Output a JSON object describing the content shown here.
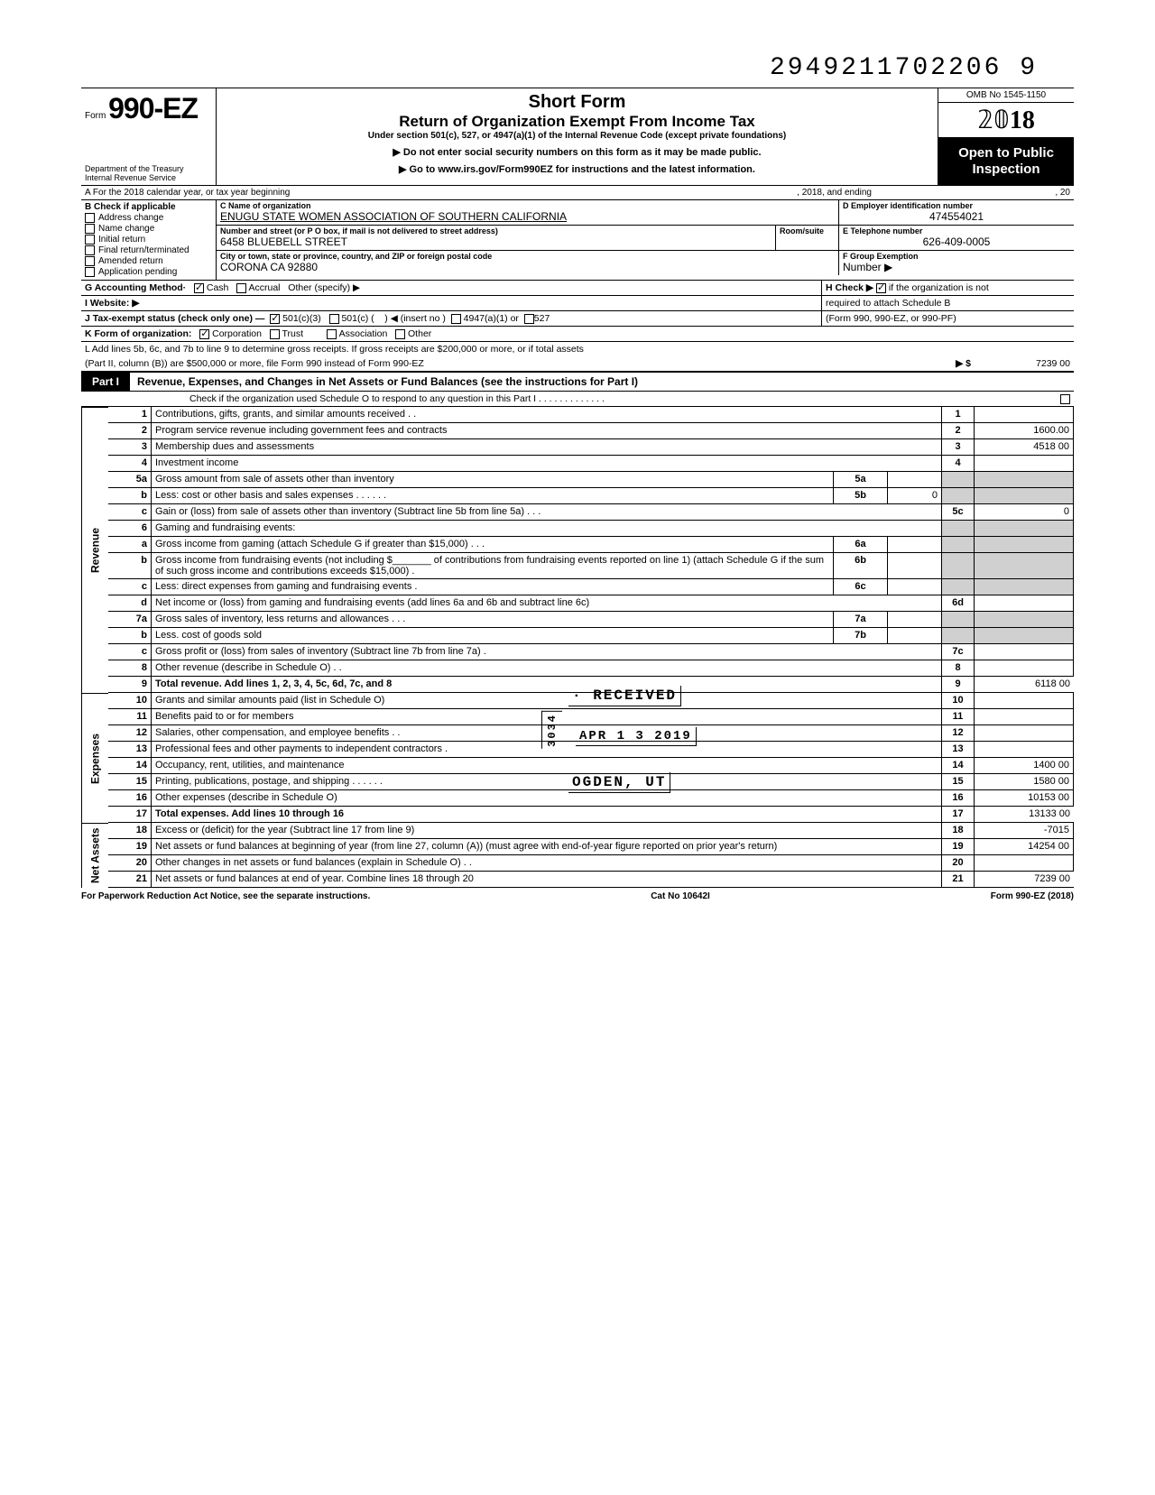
{
  "scan_number": "2949211702206 9",
  "header": {
    "form_prefix": "Form",
    "form_number": "990-EZ",
    "dept1": "Department of the Treasury",
    "dept2": "Internal Revenue Service",
    "title1": "Short Form",
    "title2": "Return of Organization Exempt From Income Tax",
    "subtitle": "Under section 501(c), 527, or 4947(a)(1) of the Internal Revenue Code (except private foundations)",
    "line1": "▶ Do not enter social security numbers on this form as it may be made public.",
    "line2": "▶ Go to www.irs.gov/Form990EZ for instructions and the latest information.",
    "omb": "OMB No 1545-1150",
    "year": "2018",
    "open": "Open to Public Inspection"
  },
  "row_a": {
    "label_a": "A For the 2018 calendar year, or tax year beginning",
    "mid": ", 2018, and ending",
    "end": ", 20"
  },
  "section_b": {
    "header": "B  Check if applicable",
    "items": [
      "Address change",
      "Name change",
      "Initial return",
      "Final return/terminated",
      "Amended return",
      "Application pending"
    ]
  },
  "section_c": {
    "name_label": "C Name of organization",
    "name": "ENUGU STATE WOMEN ASSOCIATION OF SOUTHERN CALIFORNIA",
    "street_label": "Number and street (or P O  box, if mail is not delivered to street address)",
    "room_label": "Room/suite",
    "street": "6458 BLUEBELL STREET",
    "city_label": "City or town, state or province, country, and ZIP or foreign postal code",
    "city": "CORONA   CA 92880"
  },
  "section_d": {
    "label": "D Employer identification number",
    "value": "474554021"
  },
  "section_e": {
    "label": "E Telephone number",
    "value": "626-409-0005"
  },
  "section_f": {
    "label": "F Group Exemption",
    "label2": "Number ▶",
    "value": ""
  },
  "row_g": {
    "g": "G  Accounting Method·",
    "cash": "Cash",
    "accrual": "Accrual",
    "other": "Other (specify) ▶",
    "h": "H  Check ▶",
    "h2": "if the organization is not",
    "h3": "required to attach Schedule B",
    "h4": "(Form 990, 990-EZ, or 990-PF)"
  },
  "row_i": "I  Website: ▶",
  "row_j": {
    "label": "J  Tax-exempt status (check only one) —",
    "o1": "501(c)(3)",
    "o2": "501(c) (",
    "o2b": ") ◀ (insert no )",
    "o3": "4947(a)(1) or",
    "o4": "527"
  },
  "row_k": {
    "label": "K  Form of organization:",
    "o1": "Corporation",
    "o2": "Trust",
    "o3": "Association",
    "o4": "Other"
  },
  "row_l": {
    "line1": "L  Add lines 5b, 6c, and 7b to line 9 to determine gross receipts. If gross receipts are $200,000 or more, or if total assets",
    "line2": "(Part II, column (B)) are $500,000 or more, file Form 990 instead of Form 990-EZ",
    "arrow": "▶  $",
    "value": "7239 00"
  },
  "part1": {
    "label": "Part I",
    "title": "Revenue, Expenses, and Changes in Net Assets or Fund Balances (see the instructions for Part I)",
    "check_line": "Check if the organization used Schedule O to respond to any question in this Part I . . . . . . . . . . . . ."
  },
  "sides": {
    "revenue": "Revenue",
    "expenses": "Expenses",
    "netassets": "Net Assets"
  },
  "lines": [
    {
      "n": "1",
      "t": "Contributions, gifts, grants, and similar amounts received . .",
      "rn": "1",
      "a": ""
    },
    {
      "n": "2",
      "t": "Program service revenue including government fees and contracts",
      "rn": "2",
      "a": "1600.00"
    },
    {
      "n": "3",
      "t": "Membership dues and assessments",
      "rn": "3",
      "a": "4518 00"
    },
    {
      "n": "4",
      "t": "Investment income",
      "rn": "4",
      "a": ""
    },
    {
      "n": "5a",
      "t": "Gross amount from sale of assets other than inventory",
      "mid": "5a",
      "mv": ""
    },
    {
      "n": "b",
      "t": "Less: cost or other basis and sales expenses . . . . . .",
      "mid": "5b",
      "mv": "0"
    },
    {
      "n": "c",
      "t": "Gain or (loss) from sale of assets other than inventory (Subtract line 5b from line 5a) . . .",
      "rn": "5c",
      "a": "0"
    },
    {
      "n": "6",
      "t": "Gaming and fundraising events:"
    },
    {
      "n": "a",
      "t": "Gross income from gaming (attach Schedule G if greater than $15,000) . . .",
      "mid": "6a",
      "mv": ""
    },
    {
      "n": "b",
      "t": "Gross income from fundraising events (not including  $_______ of contributions from fundraising events reported on line 1) (attach Schedule G if the sum of such gross income and contributions exceeds $15,000) .",
      "mid": "6b",
      "mv": ""
    },
    {
      "n": "c",
      "t": "Less: direct expenses from gaming and fundraising events   .",
      "mid": "6c",
      "mv": ""
    },
    {
      "n": "d",
      "t": "Net income or (loss) from gaming and fundraising events (add lines 6a and 6b and subtract line 6c)",
      "rn": "6d",
      "a": ""
    },
    {
      "n": "7a",
      "t": "Gross sales of inventory, less returns and allowances . . .",
      "mid": "7a",
      "mv": ""
    },
    {
      "n": "b",
      "t": "Less. cost of goods sold",
      "mid": "7b",
      "mv": ""
    },
    {
      "n": "c",
      "t": "Gross profit or (loss) from sales of inventory (Subtract line 7b from line 7a)  .",
      "rn": "7c",
      "a": ""
    },
    {
      "n": "8",
      "t": "Other revenue (describe in Schedule O) . .",
      "rn": "8",
      "a": ""
    },
    {
      "n": "9",
      "t": "Total revenue. Add lines 1, 2, 3, 4, 5c, 6d, 7c, and 8",
      "rn": "9",
      "a": "6118 00",
      "bold": true
    }
  ],
  "exp_lines": [
    {
      "n": "10",
      "t": "Grants and similar amounts paid (list in Schedule O)",
      "rn": "10",
      "a": ""
    },
    {
      "n": "11",
      "t": "Benefits paid to or for members",
      "rn": "11",
      "a": ""
    },
    {
      "n": "12",
      "t": "Salaries, other compensation, and employee benefits . .",
      "rn": "12",
      "a": ""
    },
    {
      "n": "13",
      "t": "Professional fees and other payments to independent contractors .",
      "rn": "13",
      "a": ""
    },
    {
      "n": "14",
      "t": "Occupancy, rent, utilities, and maintenance",
      "rn": "14",
      "a": "1400 00"
    },
    {
      "n": "15",
      "t": "Printing, publications, postage, and shipping . . . . . .",
      "rn": "15",
      "a": "1580 00"
    },
    {
      "n": "16",
      "t": "Other expenses (describe in Schedule O)",
      "rn": "16",
      "a": "10153 00"
    },
    {
      "n": "17",
      "t": "Total expenses. Add lines 10 through 16",
      "rn": "17",
      "a": "13133 00",
      "bold": true
    }
  ],
  "na_lines": [
    {
      "n": "18",
      "t": "Excess or (deficit) for the year (Subtract line 17 from line 9)",
      "rn": "18",
      "a": "-7015"
    },
    {
      "n": "19",
      "t": "Net assets or fund balances at beginning of year (from line 27, column (A)) (must agree with end-of-year figure reported on prior year's return)",
      "rn": "19",
      "a": "14254 00"
    },
    {
      "n": "20",
      "t": "Other changes in net assets or fund balances (explain in Schedule O) . .",
      "rn": "20",
      "a": ""
    },
    {
      "n": "21",
      "t": "Net assets or fund balances at end of year. Combine lines 18 through 20",
      "rn": "21",
      "a": "7239 00"
    }
  ],
  "stamps": {
    "received": "· RECEIVED",
    "date": "APR 1 3 2019",
    "ogden": "OGDEN, UT",
    "vert": "3034"
  },
  "footer": {
    "left": "For Paperwork Reduction Act Notice, see the separate instructions.",
    "mid": "Cat  No  10642I",
    "right": "Form 990-EZ (2018)"
  },
  "colors": {
    "black": "#000000",
    "shade": "#d0d0d0",
    "white": "#ffffff"
  }
}
